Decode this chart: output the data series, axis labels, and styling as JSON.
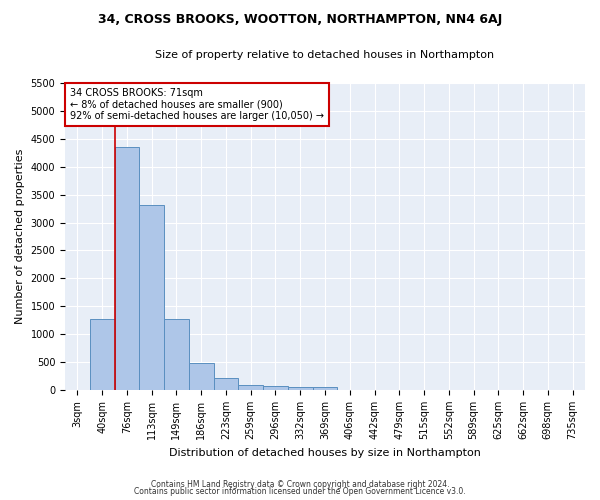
{
  "title": "34, CROSS BROOKS, WOOTTON, NORTHAMPTON, NN4 6AJ",
  "subtitle": "Size of property relative to detached houses in Northampton",
  "xlabel": "Distribution of detached houses by size in Northampton",
  "ylabel": "Number of detached properties",
  "footnote1": "Contains HM Land Registry data © Crown copyright and database right 2024.",
  "footnote2": "Contains public sector information licensed under the Open Government Licence v3.0.",
  "bar_labels": [
    "3sqm",
    "40sqm",
    "76sqm",
    "113sqm",
    "149sqm",
    "186sqm",
    "223sqm",
    "259sqm",
    "296sqm",
    "332sqm",
    "369sqm",
    "406sqm",
    "442sqm",
    "479sqm",
    "515sqm",
    "552sqm",
    "589sqm",
    "625sqm",
    "662sqm",
    "698sqm",
    "735sqm"
  ],
  "bar_values": [
    0,
    1270,
    4350,
    3310,
    1265,
    490,
    220,
    95,
    70,
    50,
    55,
    0,
    0,
    0,
    0,
    0,
    0,
    0,
    0,
    0,
    0
  ],
  "bar_color": "#aec6e8",
  "bar_edge_color": "#5a8fc0",
  "vline_color": "#cc0000",
  "vline_x_index": 1.5,
  "ylim": [
    0,
    5500
  ],
  "yticks": [
    0,
    500,
    1000,
    1500,
    2000,
    2500,
    3000,
    3500,
    4000,
    4500,
    5000,
    5500
  ],
  "annotation_text": "34 CROSS BROOKS: 71sqm\n← 8% of detached houses are smaller (900)\n92% of semi-detached houses are larger (10,050) →",
  "annotation_box_color": "#cc0000",
  "plot_bg_color": "#e8eef7",
  "grid_color": "#ffffff",
  "title_fontsize": 9,
  "subtitle_fontsize": 8,
  "ylabel_fontsize": 8,
  "xlabel_fontsize": 8,
  "tick_fontsize": 7,
  "annot_fontsize": 7,
  "footnote_fontsize": 5.5
}
